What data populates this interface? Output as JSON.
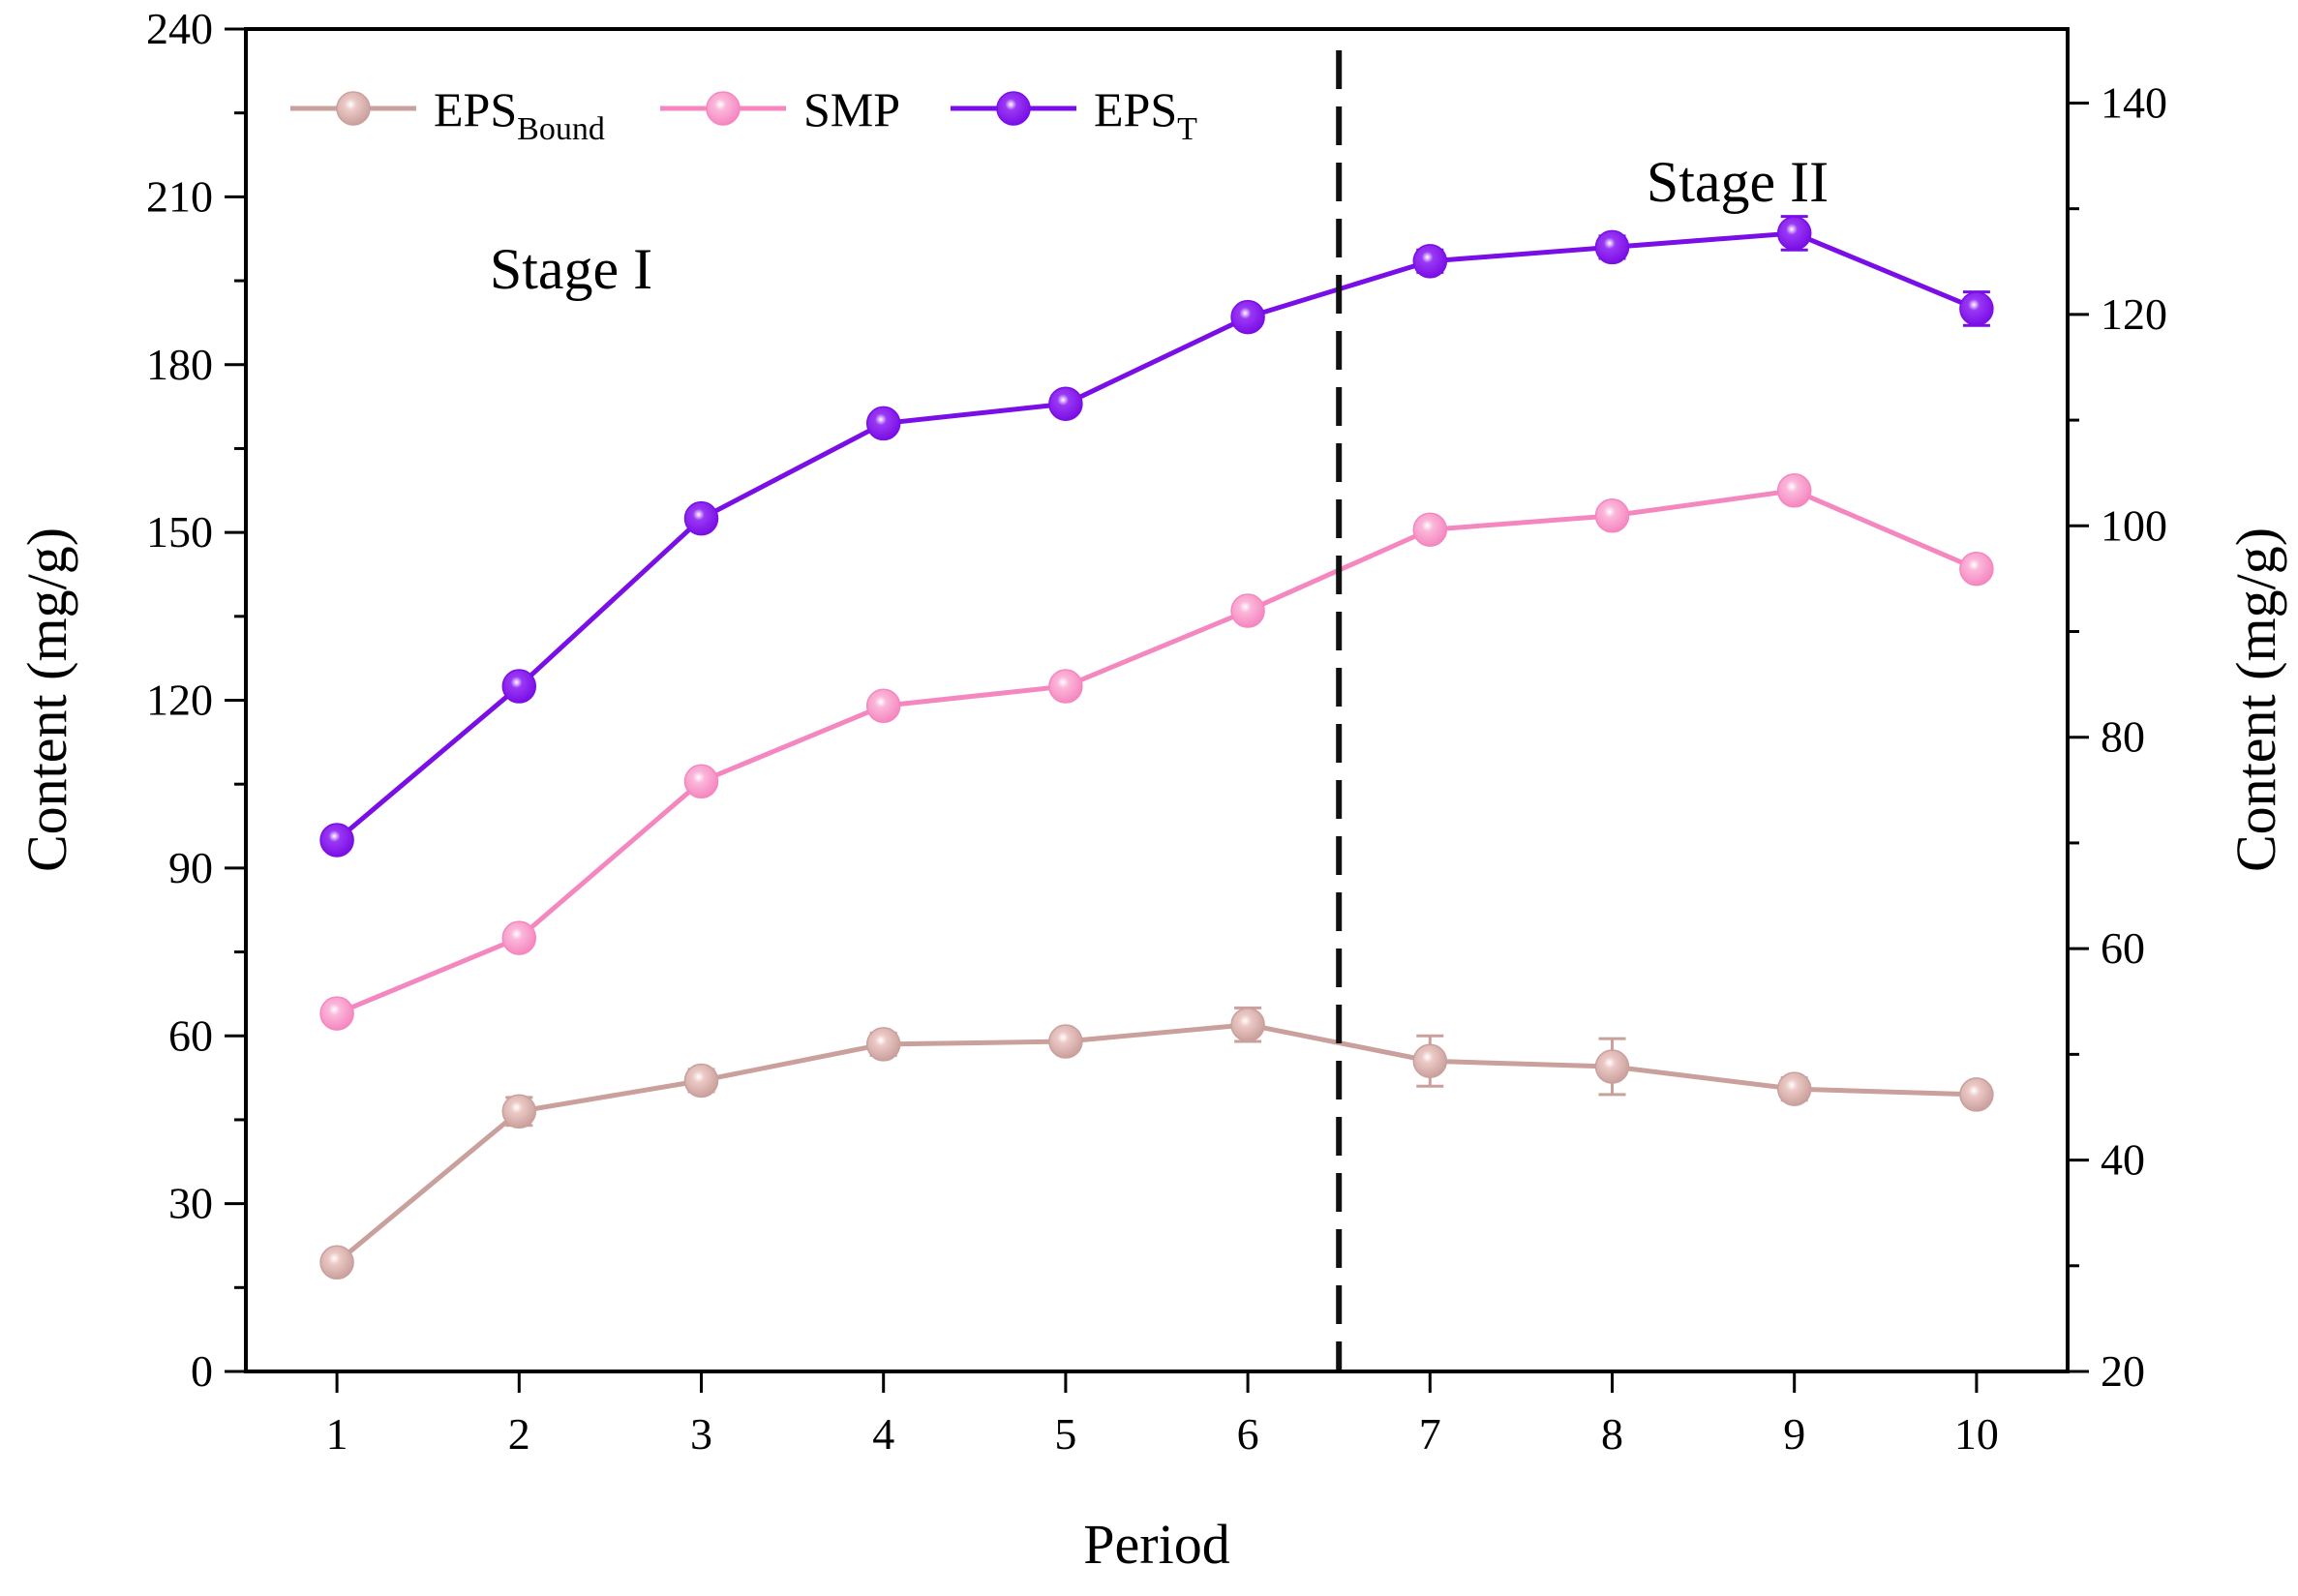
{
  "chart_data": {
    "type": "line",
    "xlabel": "Period",
    "ylabel": "Content (mg/g)",
    "y2label": "Content (mg/g)",
    "x": [
      1,
      2,
      3,
      4,
      5,
      6,
      7,
      8,
      9,
      10
    ],
    "xticks": [
      "1",
      "2",
      "3",
      "4",
      "5",
      "6",
      "7",
      "8",
      "9",
      "10"
    ],
    "xlim": [
      0.5,
      10.5
    ],
    "ylim": [
      0,
      240
    ],
    "yticks": [
      "0",
      "30",
      "60",
      "90",
      "120",
      "150",
      "180",
      "210",
      "240"
    ],
    "y2lim": [
      20,
      147
    ],
    "y2ticks": [
      "20",
      "40",
      "60",
      "80",
      "100",
      "120",
      "140"
    ],
    "divider_x": 6.5,
    "stage_labels": [
      "Stage I",
      "Stage II"
    ],
    "legend_position": "top-left",
    "series": [
      {
        "name": "EPS",
        "subscript": "Bound",
        "color": "#c9a09c",
        "marker": "#ecc9c6",
        "axis": "left",
        "values": [
          19.5,
          46.5,
          52,
          58.5,
          59,
          62,
          55.5,
          54.5,
          50.5,
          49.5
        ],
        "errors": [
          1.5,
          2.5,
          2,
          2,
          1.5,
          3,
          4.5,
          5,
          2,
          1.5
        ]
      },
      {
        "name": "SMP",
        "subscript": "",
        "color": "#f587c0",
        "marker": "#fbb7da",
        "axis": "left",
        "values": [
          64,
          77.5,
          105.5,
          119,
          122.5,
          136,
          150.5,
          153,
          157.5,
          143.5
        ],
        "errors": [
          1,
          1,
          1,
          1,
          1,
          1,
          1,
          1,
          1,
          1
        ]
      },
      {
        "name": "EPS",
        "subscript": "T",
        "color": "#7a0ee6",
        "marker": "#9a38f4",
        "axis": "left",
        "values": [
          95,
          122.5,
          152.5,
          169.5,
          173,
          188.5,
          198.5,
          201,
          203.5,
          190
        ],
        "errors": [
          1,
          1,
          1.5,
          1.5,
          1,
          1.5,
          2,
          2,
          3,
          3
        ]
      }
    ]
  }
}
